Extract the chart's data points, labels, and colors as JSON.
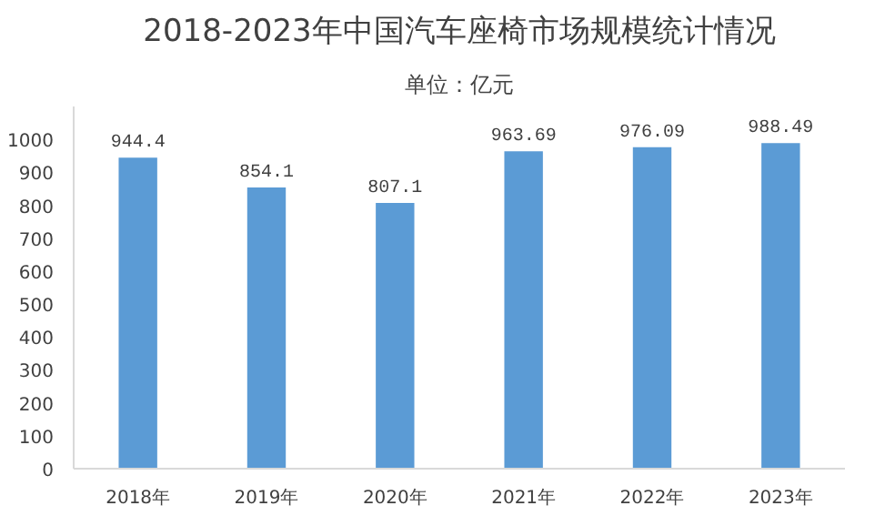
{
  "chart_data": {
    "type": "bar",
    "title": "2018-2023年中国汽车座椅市场规模统计情况",
    "subtitle": "单位：亿元",
    "categories": [
      "2018年",
      "2019年",
      "2020年",
      "2021年",
      "2022年",
      "2023年"
    ],
    "values": [
      944.4,
      854.1,
      807.1,
      963.69,
      976.09,
      988.49
    ],
    "color": "#5b9bd5",
    "data_labels": true,
    "ylim": [
      0,
      1100
    ],
    "yticks": [
      0,
      100,
      200,
      300,
      400,
      500,
      600,
      700,
      800,
      900,
      1000
    ],
    "grid": false
  }
}
